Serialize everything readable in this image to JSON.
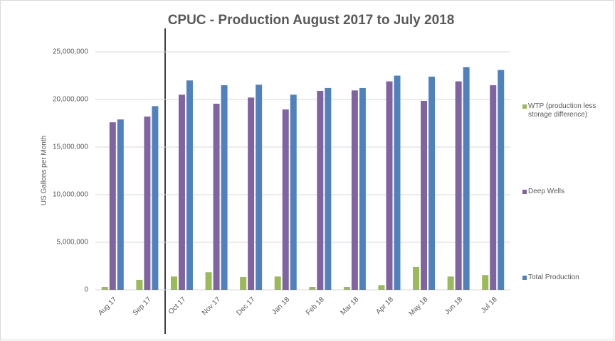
{
  "chart_data": {
    "type": "bar",
    "title": "CPUC - Production  August 2017 to July 2018",
    "y_label": "US Gallons per Month",
    "categories": [
      "Aug 17",
      "Sep 17",
      "Oct 17",
      "Nov 17",
      "Dec 17",
      "Jan 18",
      "Feb 18",
      "Mar 18",
      "Apr 18",
      "May 18",
      "Jun 18",
      "Jul 18"
    ],
    "series": [
      {
        "name": "WTP (production less storage difference)",
        "color": "#9bbb59",
        "values": [
          300000,
          1050000,
          1400000,
          1850000,
          1350000,
          1400000,
          300000,
          300000,
          500000,
          2400000,
          1400000,
          1550000
        ]
      },
      {
        "name": "Deep Wells",
        "color": "#8064a2",
        "values": [
          17600000,
          18200000,
          20500000,
          19550000,
          20200000,
          18950000,
          20900000,
          20950000,
          21900000,
          19850000,
          21900000,
          21500000
        ]
      },
      {
        "name": "Total Production",
        "color": "#4f81bd",
        "values": [
          17900000,
          19300000,
          22000000,
          21500000,
          21550000,
          20500000,
          21200000,
          21200000,
          22500000,
          22400000,
          23400000,
          23100000
        ]
      }
    ],
    "ylim": [
      0,
      25000000
    ],
    "yticks": [
      0,
      {
        "value": 5000000,
        "label": "5,000,000"
      },
      {
        "value": 10000000,
        "label": "10,000,000"
      },
      {
        "value": 15000000,
        "label": "15,000,000"
      },
      {
        "value": 20000000,
        "label": "20,000,000"
      },
      {
        "value": 25000000,
        "label": "25,000,000"
      }
    ],
    "grid": true,
    "legend": "right"
  }
}
